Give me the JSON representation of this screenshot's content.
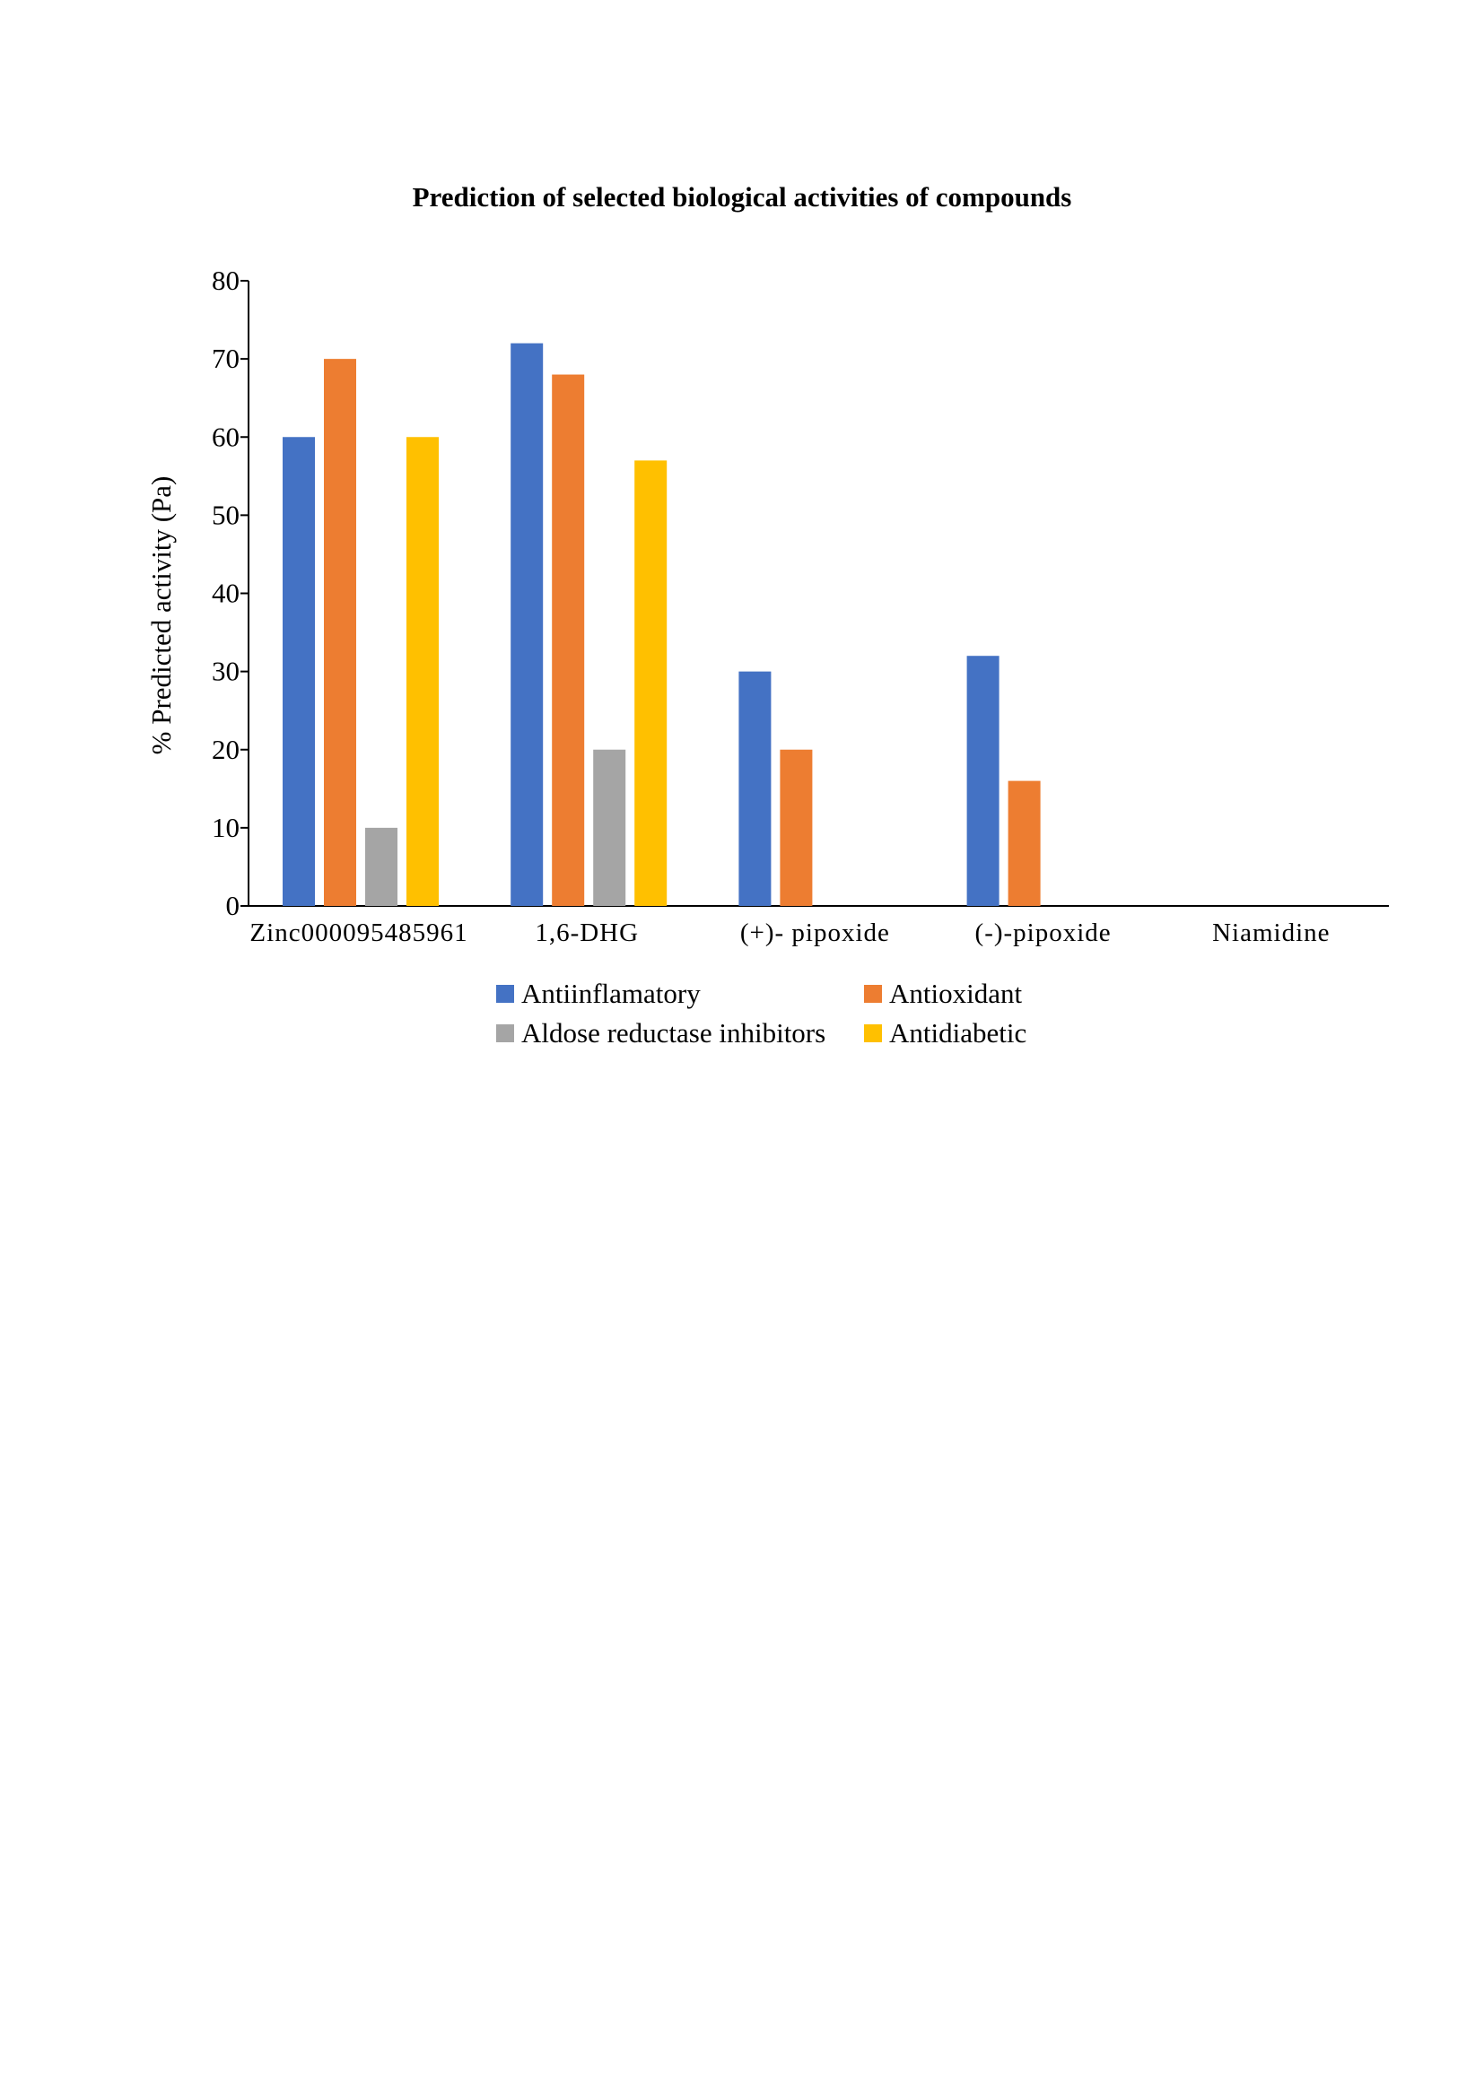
{
  "chart_data": {
    "type": "bar",
    "title": "Prediction of selected biological activities of compounds",
    "xlabel": "",
    "ylabel": "% Predicted activity (Pa)",
    "ylim": [
      0,
      80
    ],
    "yticks": [
      0,
      10,
      20,
      30,
      40,
      50,
      60,
      70,
      80
    ],
    "grid": false,
    "legend_position": "bottom",
    "categories": [
      "Zinc000095485961",
      "1,6-DHG",
      "(+)- pipoxide",
      "(-)-pipoxide",
      "Niamidine"
    ],
    "series": [
      {
        "name": "Antiinflamatory",
        "color": "#4472C4",
        "values": [
          60,
          72,
          30,
          32,
          0
        ]
      },
      {
        "name": "Antioxidant",
        "color": "#ED7D31",
        "values": [
          70,
          68,
          20,
          16,
          0
        ]
      },
      {
        "name": "Aldose reductase inhibitors",
        "color": "#A5A5A5",
        "values": [
          10,
          20,
          0,
          0,
          0
        ]
      },
      {
        "name": "Antidiabetic",
        "color": "#FFC000",
        "values": [
          60,
          57,
          0,
          0,
          0
        ]
      }
    ]
  }
}
